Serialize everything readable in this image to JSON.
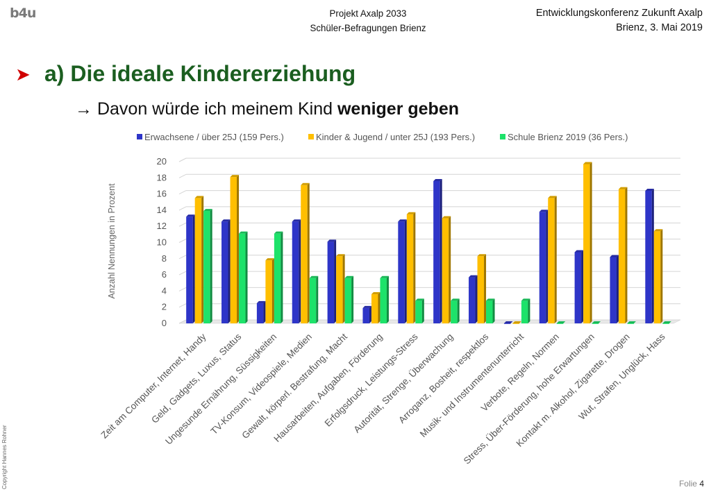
{
  "logo": "b4u",
  "header": {
    "center_line1": "Projekt Axalp 2033",
    "center_line2": "Schüler-Befragungen Brienz",
    "right_line1": "Entwicklungskonferenz Zukunft Axalp",
    "right_line2": "Brienz, 3. Mai 2019"
  },
  "title": "a) Die ideale Kindererziehung",
  "subtitle": {
    "arrow": "→",
    "text": "Davon würde ich meinem Kind",
    "bold": "weniger geben"
  },
  "copyright": "Copyright Hannes Rohner",
  "footer": {
    "label": "Folie",
    "number": "4"
  },
  "colors": {
    "title": "#1b5e20",
    "bullet": "#d00000"
  },
  "chart_data": {
    "type": "bar",
    "ylabel": "Anzahl Nennungen in Prozent",
    "ylim": [
      0,
      20
    ],
    "yticks": [
      0,
      2,
      4,
      6,
      8,
      10,
      12,
      14,
      16,
      18,
      20
    ],
    "grid": true,
    "legend_position": "top",
    "categories": [
      "Zeit am Computer, Internet, Handy",
      "Geld, Gadgets, Luxus, Status",
      "Ungesunde Ernährung, Süssigkeiten",
      "TV-Konsum, Videospiele, Medien",
      "Gewalt, körperl. Bestrafung, Macht",
      "Hausarbeiten, Aufgaben, Förderung",
      "Erfolgsdruck, Leistungs-Stress",
      "Autorität, Strenge, Überwachung",
      "Arroganz, Bosheit, respektlos",
      "Musik- und Instrumentenunterricht",
      "Verbote, Regeln, Normen",
      "Stress, Über-Förderung, hohe Erwartungen",
      "Kontakt m. Alkohol, Zigarette, Drogen",
      "Wut, Strafen, Unglück, Hass"
    ],
    "series": [
      {
        "name": "Erwachsene / über 25J (159 Pers.)",
        "color": "#2e35c8",
        "values": [
          13.2,
          12.6,
          2.5,
          12.6,
          10.1,
          1.9,
          12.6,
          17.6,
          5.7,
          0.0,
          13.8,
          8.8,
          8.2,
          16.4
        ]
      },
      {
        "name": "Kinder & Jugend / unter 25J (193 Pers.)",
        "color": "#ffbf00",
        "values": [
          15.5,
          18.1,
          7.8,
          17.1,
          8.3,
          3.6,
          13.5,
          13.0,
          8.3,
          0.0,
          15.5,
          19.7,
          16.6,
          11.4
        ]
      },
      {
        "name": "Schule Brienz 2019 (36 Pers.)",
        "color": "#1de26a",
        "values": [
          13.9,
          11.1,
          11.1,
          5.6,
          5.6,
          5.6,
          2.8,
          2.8,
          2.8,
          2.8,
          0.0,
          0.0,
          0.0,
          0.0
        ]
      }
    ]
  }
}
